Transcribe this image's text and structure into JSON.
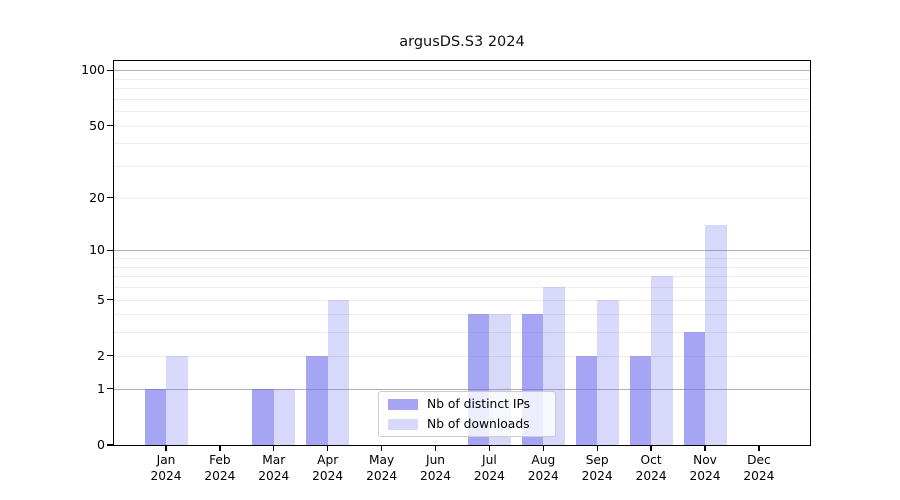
{
  "chart_data": {
    "type": "bar",
    "title": "argusDS.S3 2024",
    "x_tick_year": "2024",
    "categories": [
      "Jan",
      "Feb",
      "Mar",
      "Apr",
      "May",
      "Jun",
      "Jul",
      "Aug",
      "Sep",
      "Oct",
      "Nov",
      "Dec"
    ],
    "series": [
      {
        "name": "Nb of distinct IPs",
        "color": "#6e6eeb",
        "alpha": 0.62,
        "values": [
          1,
          0,
          1,
          2,
          0,
          0,
          4,
          4,
          2,
          2,
          3,
          0
        ]
      },
      {
        "name": "Nb of downloads",
        "color": "#6e6eeb",
        "alpha": 0.27,
        "values": [
          2,
          0,
          1,
          5,
          0,
          0,
          4,
          6,
          5,
          7,
          14,
          0
        ]
      }
    ],
    "xlabel": "",
    "ylabel": "",
    "yscale": "log1p",
    "ylim": [
      0,
      113
    ],
    "ytick_values": [
      0,
      1,
      2,
      5,
      10,
      20,
      50,
      100
    ],
    "major_gridline_values": [
      1,
      10,
      100
    ],
    "minor_gridline_values": [
      2,
      3,
      4,
      5,
      6,
      7,
      8,
      9,
      20,
      30,
      40,
      50,
      60,
      70,
      80,
      90
    ],
    "grid": true,
    "legend_position": "lower center"
  },
  "colors": {
    "bar_base": "#6e6eeb",
    "major_grid": "#b0b0b0",
    "minor_grid": "#ececec",
    "spine": "#000000",
    "legend_border": "#cccccc"
  }
}
